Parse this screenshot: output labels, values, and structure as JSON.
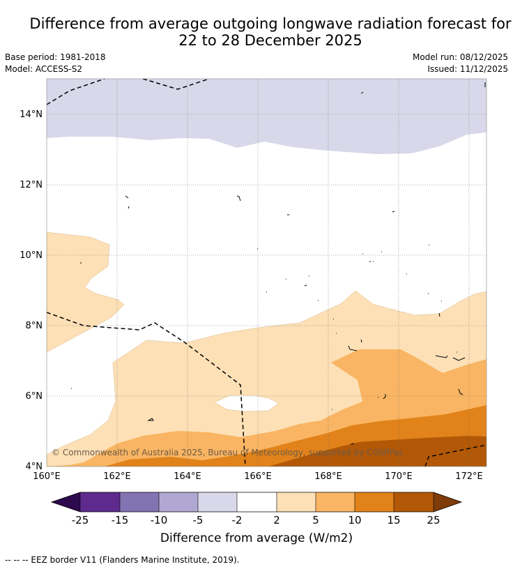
{
  "title": {
    "line1": "Difference from average outgoing longwave radiation forecast for",
    "line2": "22 to 28 December 2025"
  },
  "meta": {
    "base_period": "Base period: 1981-2018",
    "model": "Model: ACCESS-S2",
    "model_run": "Model run: 08/12/2025",
    "issued": "Issued: 11/12/2025"
  },
  "map": {
    "lon_range": [
      160,
      172.5
    ],
    "lat_range": [
      4,
      15
    ],
    "lon_ticks": [
      "160°E",
      "162°E",
      "164°E",
      "166°E",
      "168°E",
      "170°E",
      "172°E"
    ],
    "lat_ticks": [
      "4°N",
      "6°N",
      "8°N",
      "10°N",
      "12°N",
      "14°N"
    ],
    "copyright": "© Commonwealth of Australia 2025, Bureau of Meteorology, supported by COSPPac"
  },
  "colorbar": {
    "ticks": [
      "-25",
      "-15",
      "-10",
      "-5",
      "-2",
      "2",
      "5",
      "10",
      "15",
      "25"
    ],
    "colors": [
      "#2d0a4e",
      "#5e2a8e",
      "#8273b2",
      "#b0a8d2",
      "#d8d8ea",
      "#ffffff",
      "#fde0b6",
      "#f9b563",
      "#e1831a",
      "#b25807",
      "#7f3b08"
    ],
    "label": "Difference from average (W/m2)"
  },
  "footnote": "--  --  -- EEZ border V11 (Flanders Marine Institute, 2019)."
}
